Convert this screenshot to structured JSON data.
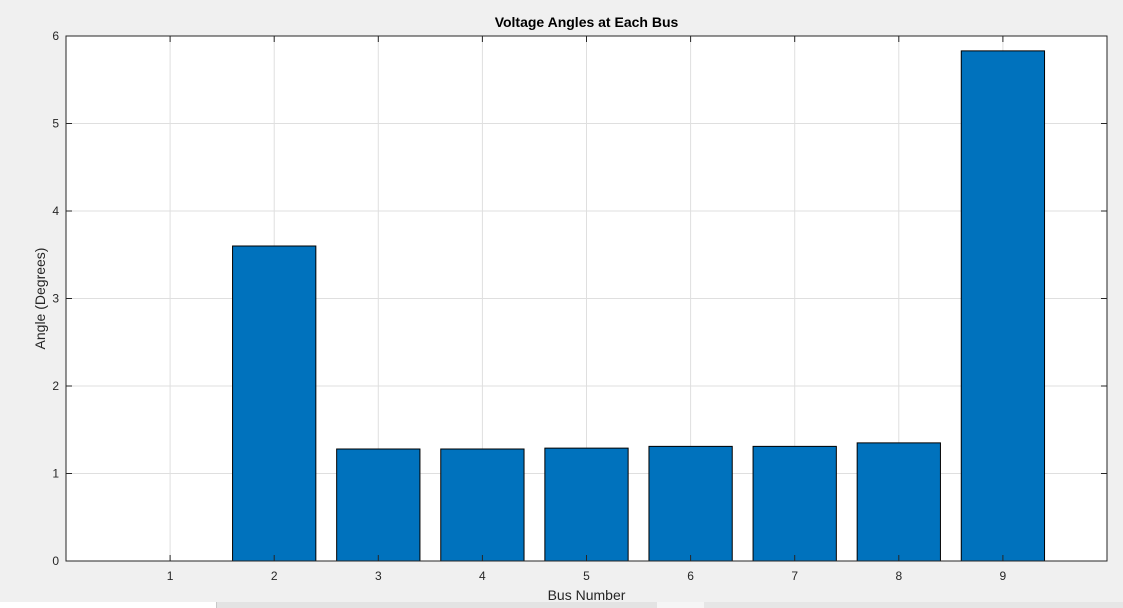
{
  "chart_data": {
    "type": "bar",
    "title": "Voltage Angles at Each Bus",
    "xlabel": "Bus Number",
    "ylabel": "Angle (Degrees)",
    "categories": [
      "1",
      "2",
      "3",
      "4",
      "5",
      "6",
      "7",
      "8",
      "9"
    ],
    "values": [
      0,
      3.6,
      1.28,
      1.28,
      1.29,
      1.31,
      1.31,
      1.35,
      5.83
    ],
    "xlim": [
      0,
      10
    ],
    "ylim": [
      0,
      6
    ],
    "yticks": [
      "0",
      "1",
      "2",
      "3",
      "4",
      "5",
      "6"
    ],
    "grid": true,
    "bar_color": "#0072BD",
    "bar_edge_color": "#000000"
  }
}
